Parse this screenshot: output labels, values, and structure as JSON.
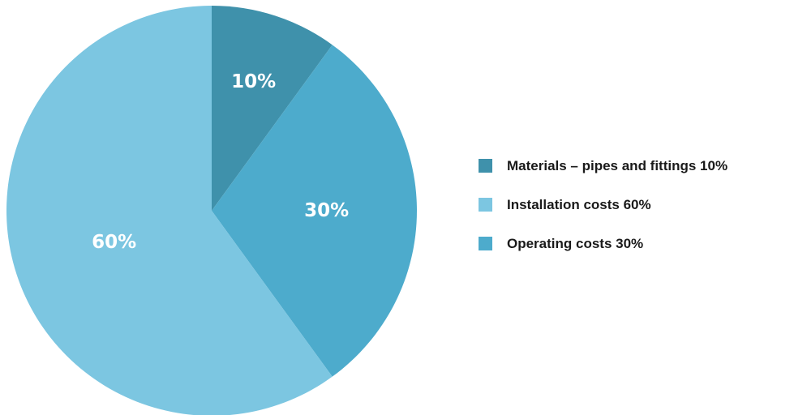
{
  "chart_data": {
    "type": "pie",
    "slices": [
      {
        "label": "Materials – pipes and fittings 10%",
        "value": 10,
        "value_label": "10%",
        "color": "#3f91ab"
      },
      {
        "label": "Operating costs 30%",
        "value": 30,
        "value_label": "30%",
        "color": "#4dabcc"
      },
      {
        "label": "Installation costs 60%",
        "value": 60,
        "value_label": "60%",
        "color": "#7cc6e1"
      }
    ],
    "legend": [
      {
        "label": "Materials – pipes and fittings 10%",
        "color": "#3f91ab"
      },
      {
        "label": "Installation costs 60%",
        "color": "#7cc6e1"
      },
      {
        "label": "Operating costs 30%",
        "color": "#4dabcc"
      }
    ],
    "legend_position": "right",
    "start_angle": "top",
    "direction": "clockwise"
  }
}
